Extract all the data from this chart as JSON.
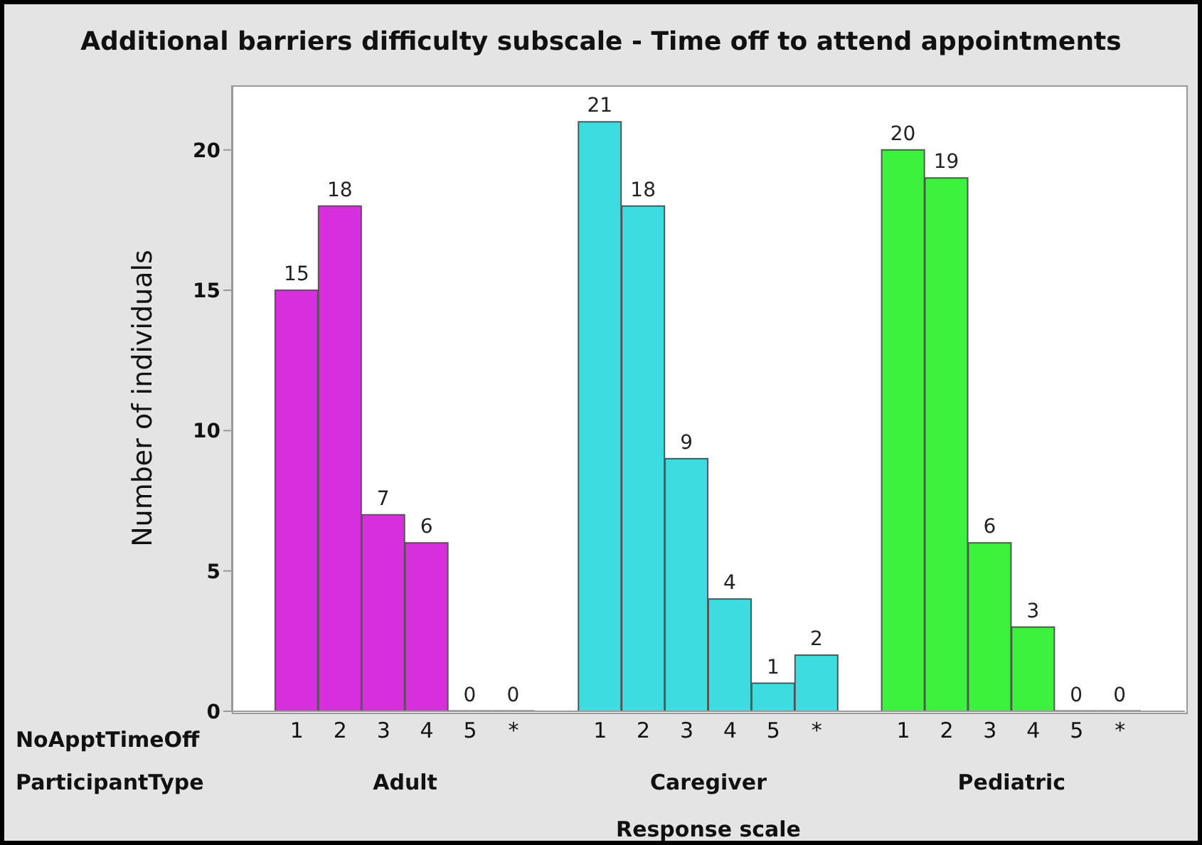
{
  "chart_data": {
    "type": "bar",
    "title": "Additional barriers difficulty subscale - Time off to attend appointments",
    "xlabel": "Response scale",
    "ylabel": "Number of individuals",
    "annotations": [
      "NoApptTimeOff",
      "ParticipantType"
    ],
    "categories": [
      null,
      "1",
      "2",
      "3",
      "4",
      "5",
      "*",
      null,
      "1",
      "2",
      "3",
      "4",
      "5",
      "*",
      null,
      "1",
      "2",
      "3",
      "4",
      "5",
      "*",
      null
    ],
    "series": [
      {
        "name": "Adult",
        "color": "#d62fdb",
        "values": [
          null,
          15,
          18,
          7,
          6,
          0,
          0,
          null,
          null,
          null,
          null,
          null,
          null,
          null,
          null,
          null,
          null,
          null,
          null,
          null,
          null,
          null
        ]
      },
      {
        "name": "Caregiver",
        "color": "#3cdce0",
        "values": [
          null,
          null,
          null,
          null,
          null,
          null,
          null,
          null,
          21,
          18,
          9,
          4,
          1,
          2,
          null,
          null,
          null,
          null,
          null,
          null,
          null,
          null
        ]
      },
      {
        "name": "Pediatric",
        "color": "#3cf23c",
        "values": [
          null,
          null,
          null,
          null,
          null,
          null,
          null,
          null,
          null,
          null,
          null,
          null,
          null,
          null,
          null,
          20,
          19,
          6,
          3,
          0,
          0,
          null
        ]
      }
    ],
    "ylim": [
      0,
      22.3
    ],
    "yticks": [
      0,
      5,
      10,
      15,
      20
    ],
    "data_labels": true
  }
}
